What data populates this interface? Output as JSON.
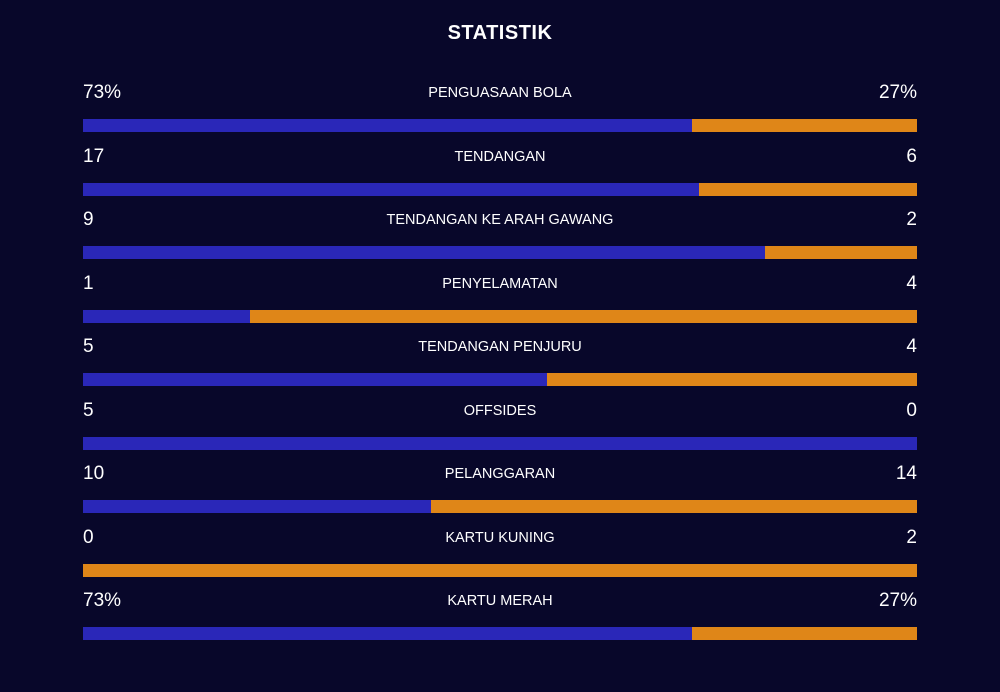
{
  "title": "STATISTIK",
  "colors": {
    "background": "#08072a",
    "home": "#2a27b8",
    "away": "#df8618"
  },
  "stats": [
    {
      "label": "PENGUASAAN BOLA",
      "home": "73%",
      "away": "27%",
      "home_share": 0.73
    },
    {
      "label": "TENDANGAN",
      "home": "17",
      "away": "6",
      "home_share": 0.739
    },
    {
      "label": "TENDANGAN KE ARAH GAWANG",
      "home": "9",
      "away": "2",
      "home_share": 0.818
    },
    {
      "label": "PENYELAMATAN",
      "home": "1",
      "away": "4",
      "home_share": 0.2
    },
    {
      "label": "TENDANGAN PENJURU",
      "home": "5",
      "away": "4",
      "home_share": 0.556
    },
    {
      "label": "OFFSIDES",
      "home": "5",
      "away": "0",
      "home_share": 1.0
    },
    {
      "label": "PELANGGARAN",
      "home": "10",
      "away": "14",
      "home_share": 0.417
    },
    {
      "label": "KARTU KUNING",
      "home": "0",
      "away": "2",
      "home_share": 0.0
    },
    {
      "label": "KARTU MERAH",
      "home": "73%",
      "away": "27%",
      "home_share": 0.73
    }
  ]
}
